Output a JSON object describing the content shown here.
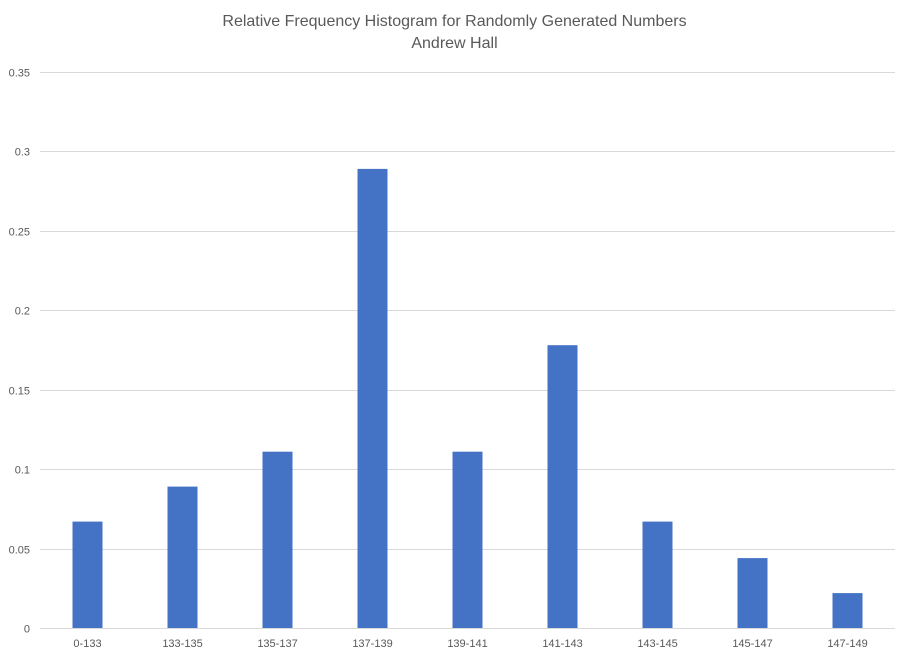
{
  "chart_data": {
    "type": "bar",
    "title": "Relative Frequency Histogram for Randomly Generated Numbers",
    "subtitle": "Andrew Hall",
    "xlabel": "",
    "ylabel": "",
    "categories": [
      "0-133",
      "133-135",
      "135-137",
      "137-139",
      "139-141",
      "141-143",
      "143-145",
      "145-147",
      "147-149"
    ],
    "values": [
      0.067,
      0.089,
      0.111,
      0.289,
      0.111,
      0.178,
      0.067,
      0.044,
      0.022
    ],
    "ylim": [
      0,
      0.35
    ],
    "yticks": [
      "0",
      "0.05",
      "0.1",
      "0.15",
      "0.2",
      "0.25",
      "0.3",
      "0.35"
    ],
    "ytick_values": [
      0,
      0.05,
      0.1,
      0.15,
      0.2,
      0.25,
      0.3,
      0.35
    ],
    "grid": true,
    "legend": "none",
    "bar_color": "#4472C4",
    "grid_color": "#D9D9D9",
    "text_color": "#595959"
  }
}
